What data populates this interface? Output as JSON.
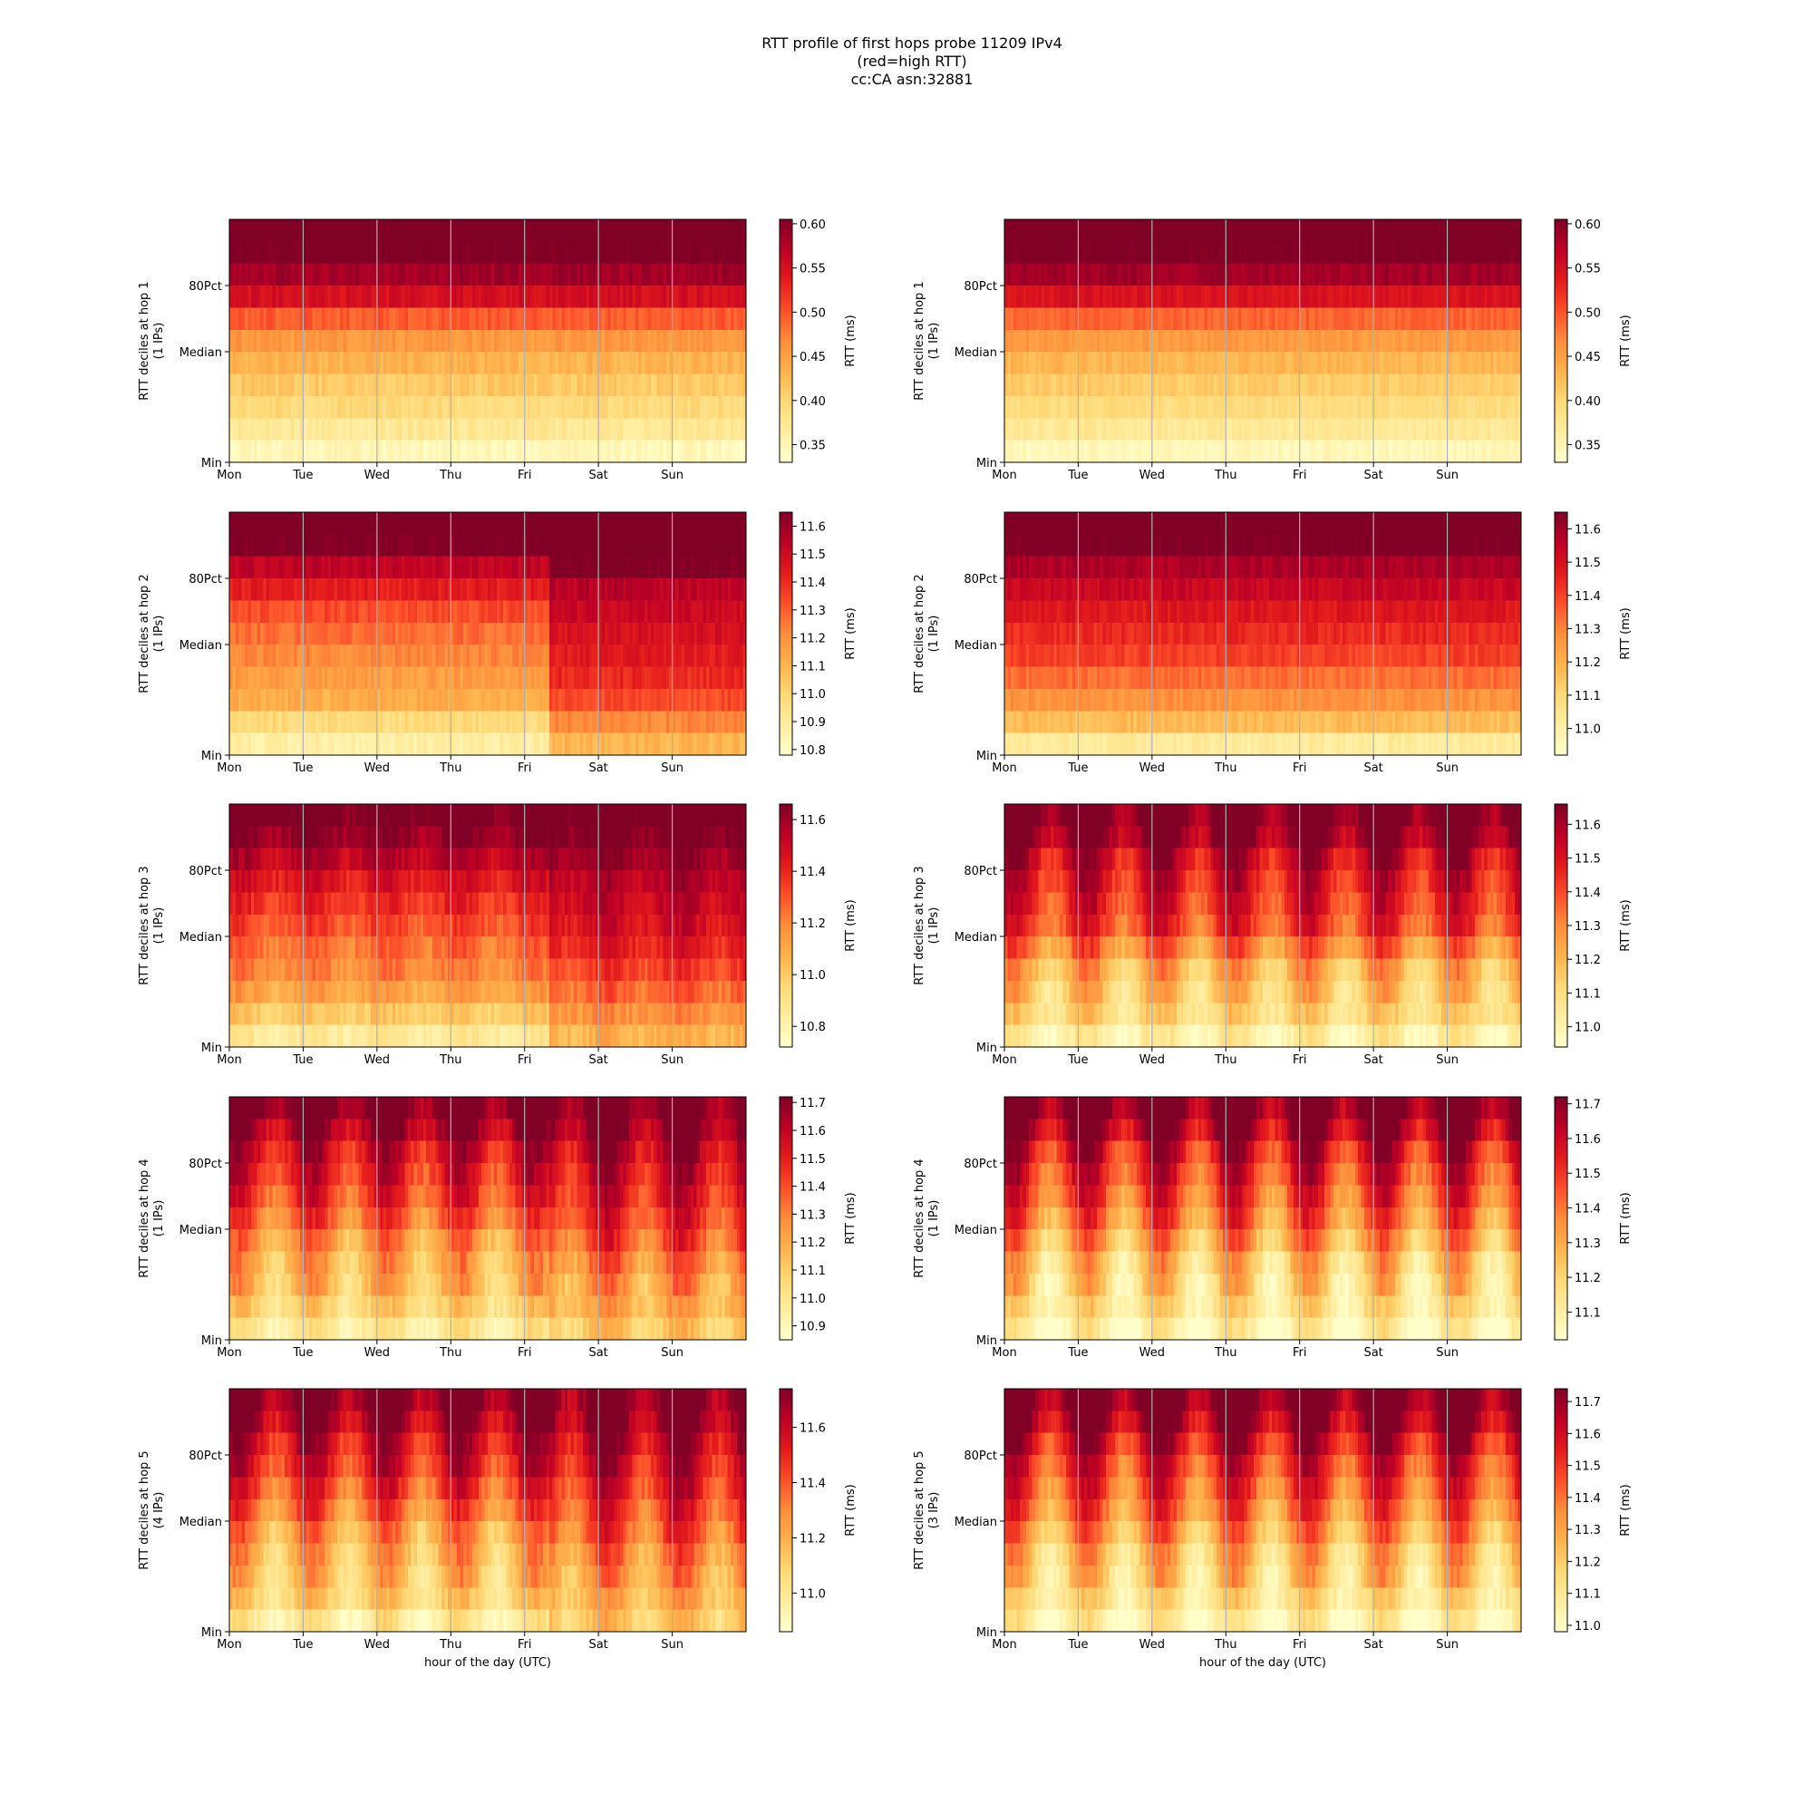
{
  "figure": {
    "title_lines": [
      "RTT profile of first hops probe 11209 IPv4",
      "(red=high RTT)",
      "cc:CA asn:32881"
    ],
    "xlabel": "hour of the day (UTC)",
    "colorbar_label": "RTT (ms)",
    "colormap": "YlOrRd",
    "colormap_stops": [
      "#ffffcc",
      "#ffeda0",
      "#fed976",
      "#feb24c",
      "#fd8d3c",
      "#fc4e2a",
      "#e31a1c",
      "#bd0026",
      "#800026"
    ],
    "grid_color": "#b0b0b0"
  },
  "chart_data": [
    {
      "type": "heatmap",
      "position_label": "left",
      "hop": 1,
      "ylabel": "RTT deciles at hop 1",
      "ylabel2": "(1 IPs)",
      "categories": [
        "Mon",
        "Tue",
        "Wed",
        "Thu",
        "Fri",
        "Sat",
        "Sun"
      ],
      "y_ticks": [
        "Min",
        "Median",
        "80Pct"
      ],
      "colorbar": {
        "min": 0.33,
        "max": 0.605,
        "ticks": [
          0.35,
          0.4,
          0.45,
          0.5,
          0.55,
          0.6
        ],
        "labels": [
          "0.35",
          "0.40",
          "0.45",
          "0.50",
          "0.55",
          "0.60"
        ]
      },
      "decile_levels_weekday": [
        0.345,
        0.372,
        0.395,
        0.412,
        0.432,
        0.457,
        0.495,
        0.55,
        0.585,
        0.61,
        0.62
      ],
      "decile_levels_weekend": [
        0.345,
        0.372,
        0.395,
        0.412,
        0.432,
        0.457,
        0.495,
        0.55,
        0.585,
        0.61,
        0.62
      ],
      "regime_change_day": null,
      "daily_cycle": 0.0,
      "noise": 0.012
    },
    {
      "type": "heatmap",
      "position_label": "right",
      "hop": 1,
      "ylabel": "RTT deciles at hop 1",
      "ylabel2": "(1 IPs)",
      "categories": [
        "Mon",
        "Tue",
        "Wed",
        "Thu",
        "Fri",
        "Sat",
        "Sun"
      ],
      "y_ticks": [
        "Min",
        "Median",
        "80Pct"
      ],
      "colorbar": {
        "min": 0.33,
        "max": 0.605,
        "ticks": [
          0.35,
          0.4,
          0.45,
          0.5,
          0.55,
          0.6
        ],
        "labels": [
          "0.35",
          "0.40",
          "0.45",
          "0.50",
          "0.55",
          "0.60"
        ]
      },
      "decile_levels_weekday": [
        0.345,
        0.372,
        0.393,
        0.41,
        0.43,
        0.455,
        0.49,
        0.545,
        0.585,
        0.61,
        0.62
      ],
      "decile_levels_weekend": [
        0.345,
        0.372,
        0.393,
        0.41,
        0.43,
        0.455,
        0.49,
        0.545,
        0.585,
        0.61,
        0.62
      ],
      "regime_change_day": null,
      "daily_cycle": 0.0,
      "noise": 0.01
    },
    {
      "type": "heatmap",
      "position_label": "left",
      "hop": 2,
      "ylabel": "RTT deciles at hop 2",
      "ylabel2": "(1 IPs)",
      "categories": [
        "Mon",
        "Tue",
        "Wed",
        "Thu",
        "Fri",
        "Sat",
        "Sun"
      ],
      "y_ticks": [
        "Min",
        "Median",
        "80Pct"
      ],
      "colorbar": {
        "min": 10.78,
        "max": 11.65,
        "ticks": [
          10.8,
          10.9,
          11.0,
          11.1,
          11.2,
          11.3,
          11.4,
          11.5,
          11.6
        ],
        "labels": [
          "10.8",
          "10.9",
          "11.0",
          "11.1",
          "11.2",
          "11.3",
          "11.4",
          "11.5",
          "11.6"
        ]
      },
      "decile_levels_weekday": [
        10.88,
        10.98,
        11.12,
        11.17,
        11.22,
        11.27,
        11.33,
        11.43,
        11.53,
        11.66,
        11.7
      ],
      "decile_levels_weekend": [
        11.1,
        11.22,
        11.33,
        11.4,
        11.44,
        11.47,
        11.5,
        11.54,
        11.66,
        11.7,
        11.72
      ],
      "regime_change_day": 4.35,
      "daily_cycle": 0.0,
      "noise": 0.04
    },
    {
      "type": "heatmap",
      "position_label": "right",
      "hop": 2,
      "ylabel": "RTT deciles at hop 2",
      "ylabel2": "(1 IPs)",
      "categories": [
        "Mon",
        "Tue",
        "Wed",
        "Thu",
        "Fri",
        "Sat",
        "Sun"
      ],
      "y_ticks": [
        "Min",
        "Median",
        "80Pct"
      ],
      "colorbar": {
        "min": 10.92,
        "max": 11.65,
        "ticks": [
          11.0,
          11.1,
          11.2,
          11.3,
          11.4,
          11.5,
          11.6
        ],
        "labels": [
          "11.0",
          "11.1",
          "11.2",
          "11.3",
          "11.4",
          "11.5",
          "11.6"
        ]
      },
      "decile_levels_weekday": [
        11.02,
        11.17,
        11.27,
        11.33,
        11.4,
        11.44,
        11.48,
        11.53,
        11.58,
        11.66,
        11.7
      ],
      "decile_levels_weekend": [
        11.02,
        11.17,
        11.27,
        11.33,
        11.4,
        11.44,
        11.48,
        11.53,
        11.58,
        11.66,
        11.7
      ],
      "regime_change_day": null,
      "daily_cycle": 0.0,
      "noise": 0.03
    },
    {
      "type": "heatmap",
      "position_label": "left",
      "hop": 3,
      "ylabel": "RTT deciles at hop 3",
      "ylabel2": "(1 IPs)",
      "categories": [
        "Mon",
        "Tue",
        "Wed",
        "Thu",
        "Fri",
        "Sat",
        "Sun"
      ],
      "y_ticks": [
        "Min",
        "Median",
        "80Pct"
      ],
      "colorbar": {
        "min": 10.72,
        "max": 11.66,
        "ticks": [
          10.8,
          11.0,
          11.2,
          11.4,
          11.6
        ],
        "labels": [
          "10.8",
          "11.0",
          "11.2",
          "11.4",
          "11.6"
        ]
      },
      "decile_levels_weekday": [
        10.86,
        11.0,
        11.12,
        11.2,
        11.25,
        11.32,
        11.38,
        11.45,
        11.54,
        11.63,
        11.7
      ],
      "decile_levels_weekend": [
        11.08,
        11.18,
        11.27,
        11.35,
        11.42,
        11.48,
        11.52,
        11.56,
        11.62,
        11.68,
        11.72
      ],
      "regime_change_day": 4.35,
      "daily_cycle": 0.05,
      "noise": 0.05
    },
    {
      "type": "heatmap",
      "position_label": "right",
      "hop": 3,
      "ylabel": "RTT deciles at hop 3",
      "ylabel2": "(1 IPs)",
      "categories": [
        "Mon",
        "Tue",
        "Wed",
        "Thu",
        "Fri",
        "Sat",
        "Sun"
      ],
      "y_ticks": [
        "Min",
        "Median",
        "80Pct"
      ],
      "colorbar": {
        "min": 10.94,
        "max": 11.66,
        "ticks": [
          11.0,
          11.1,
          11.2,
          11.3,
          11.4,
          11.5,
          11.6
        ],
        "labels": [
          "11.0",
          "11.1",
          "11.2",
          "11.3",
          "11.4",
          "11.5",
          "11.6"
        ]
      },
      "decile_levels_weekday": [
        11.02,
        11.12,
        11.17,
        11.22,
        11.32,
        11.42,
        11.46,
        11.5,
        11.55,
        11.65,
        11.7
      ],
      "decile_levels_weekend": [
        11.02,
        11.12,
        11.17,
        11.22,
        11.32,
        11.42,
        11.46,
        11.5,
        11.55,
        11.65,
        11.7
      ],
      "regime_change_day": null,
      "daily_cycle": 0.12,
      "noise": 0.04
    },
    {
      "type": "heatmap",
      "position_label": "left",
      "hop": 4,
      "ylabel": "RTT deciles at hop 4",
      "ylabel2": "(1 IPs)",
      "categories": [
        "Mon",
        "Tue",
        "Wed",
        "Thu",
        "Fri",
        "Sat",
        "Sun"
      ],
      "y_ticks": [
        "Min",
        "Median",
        "80Pct"
      ],
      "colorbar": {
        "min": 10.85,
        "max": 11.72,
        "ticks": [
          10.9,
          11.0,
          11.1,
          11.2,
          11.3,
          11.4,
          11.5,
          11.6,
          11.7
        ],
        "labels": [
          "10.9",
          "11.0",
          "11.1",
          "11.2",
          "11.3",
          "11.4",
          "11.5",
          "11.6",
          "11.7"
        ]
      },
      "decile_levels_weekday": [
        10.98,
        11.08,
        11.16,
        11.2,
        11.26,
        11.36,
        11.44,
        11.5,
        11.56,
        11.66,
        11.76
      ],
      "decile_levels_weekend": [
        11.12,
        11.2,
        11.25,
        11.32,
        11.4,
        11.46,
        11.52,
        11.56,
        11.62,
        11.7,
        11.76
      ],
      "regime_change_day": 4.35,
      "daily_cycle": 0.14,
      "noise": 0.05
    },
    {
      "type": "heatmap",
      "position_label": "right",
      "hop": 4,
      "ylabel": "RTT deciles at hop 4",
      "ylabel2": "(1 IPs)",
      "categories": [
        "Mon",
        "Tue",
        "Wed",
        "Thu",
        "Fri",
        "Sat",
        "Sun"
      ],
      "y_ticks": [
        "Min",
        "Median",
        "80Pct"
      ],
      "colorbar": {
        "min": 11.02,
        "max": 11.72,
        "ticks": [
          11.1,
          11.2,
          11.3,
          11.4,
          11.5,
          11.6,
          11.7
        ],
        "labels": [
          "11.1",
          "11.2",
          "11.3",
          "11.4",
          "11.5",
          "11.6",
          "11.7"
        ]
      },
      "decile_levels_weekday": [
        11.08,
        11.16,
        11.2,
        11.24,
        11.32,
        11.4,
        11.46,
        11.52,
        11.58,
        11.68,
        11.76
      ],
      "decile_levels_weekend": [
        11.08,
        11.16,
        11.2,
        11.24,
        11.32,
        11.4,
        11.46,
        11.52,
        11.58,
        11.68,
        11.76
      ],
      "regime_change_day": null,
      "daily_cycle": 0.16,
      "noise": 0.04
    },
    {
      "type": "heatmap",
      "position_label": "left",
      "hop": 5,
      "ylabel": "RTT deciles at hop 5",
      "ylabel2": "(4 IPs)",
      "categories": [
        "Mon",
        "Tue",
        "Wed",
        "Thu",
        "Fri",
        "Sat",
        "Sun"
      ],
      "y_ticks": [
        "Min",
        "Median",
        "80Pct"
      ],
      "colorbar": {
        "min": 10.86,
        "max": 11.74,
        "ticks": [
          11.0,
          11.2,
          11.4,
          11.6
        ],
        "labels": [
          "11.0",
          "11.2",
          "11.4",
          "11.6"
        ]
      },
      "decile_levels_weekday": [
        10.98,
        11.1,
        11.16,
        11.2,
        11.26,
        11.36,
        11.44,
        11.52,
        11.58,
        11.68,
        11.76
      ],
      "decile_levels_weekend": [
        11.14,
        11.2,
        11.26,
        11.32,
        11.4,
        11.46,
        11.52,
        11.58,
        11.64,
        11.72,
        11.76
      ],
      "regime_change_day": 4.35,
      "daily_cycle": 0.16,
      "noise": 0.05
    },
    {
      "type": "heatmap",
      "position_label": "right",
      "hop": 5,
      "ylabel": "RTT deciles at hop 5",
      "ylabel2": "(3 IPs)",
      "categories": [
        "Mon",
        "Tue",
        "Wed",
        "Thu",
        "Fri",
        "Sat",
        "Sun"
      ],
      "y_ticks": [
        "Min",
        "Median",
        "80Pct"
      ],
      "colorbar": {
        "min": 10.98,
        "max": 11.74,
        "ticks": [
          11.0,
          11.1,
          11.2,
          11.3,
          11.4,
          11.5,
          11.6,
          11.7
        ],
        "labels": [
          "11.0",
          "11.1",
          "11.2",
          "11.3",
          "11.4",
          "11.5",
          "11.6",
          "11.7"
        ]
      },
      "decile_levels_weekday": [
        11.06,
        11.14,
        11.2,
        11.24,
        11.32,
        11.4,
        11.46,
        11.52,
        11.6,
        11.7,
        11.78
      ],
      "decile_levels_weekend": [
        11.06,
        11.14,
        11.2,
        11.24,
        11.32,
        11.4,
        11.46,
        11.52,
        11.6,
        11.7,
        11.78
      ],
      "regime_change_day": null,
      "daily_cycle": 0.17,
      "noise": 0.04
    }
  ]
}
